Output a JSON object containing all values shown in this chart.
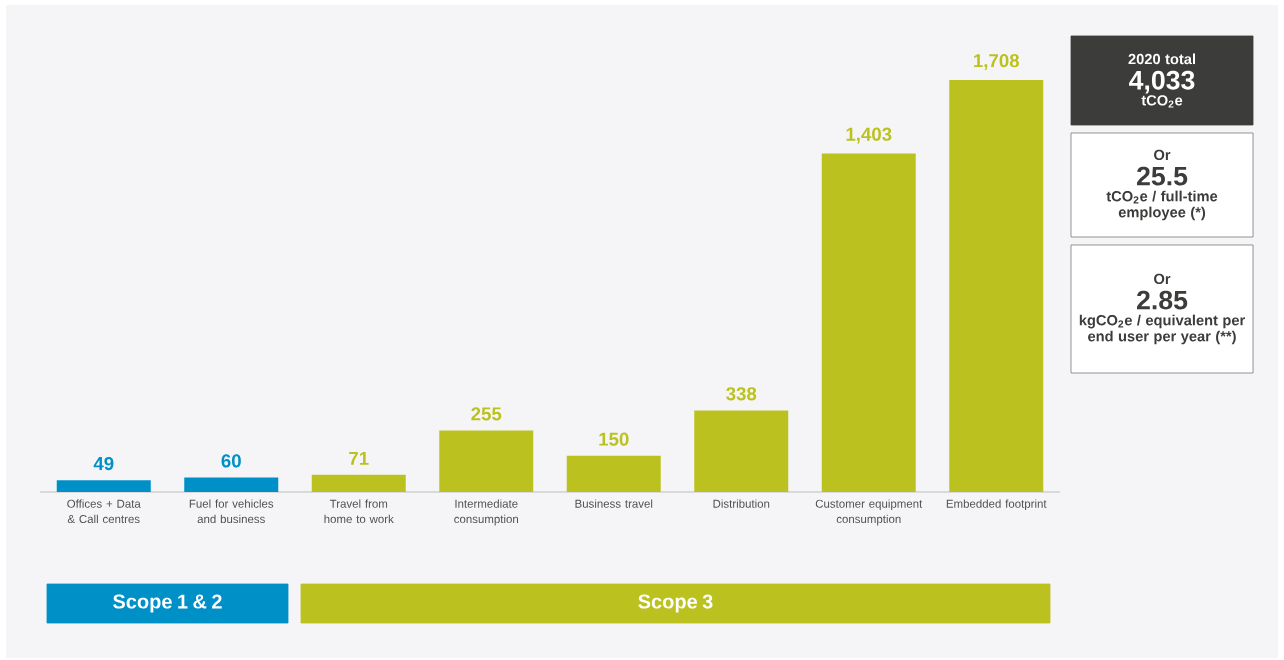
{
  "chart_data": {
    "type": "bar",
    "categories": [
      "Offices + Data & Call centres",
      "Fuel for vehicles and business",
      "Travel from home to work",
      "Intermediate consumption",
      "Business travel",
      "Distribution",
      "Customer equipment consumption",
      "Embedded footprint"
    ],
    "values": [
      49,
      60,
      71,
      255,
      150,
      338,
      1403,
      1708
    ],
    "colors": [
      "#0090c8",
      "#0090c8",
      "#bbc21f",
      "#bbc21f",
      "#bbc21f",
      "#bbc21f",
      "#bbc21f",
      "#bbc21f"
    ],
    "value_labels": [
      "49",
      "60",
      "71",
      "255",
      "150",
      "338",
      "1,403",
      "1,708"
    ],
    "annotations": [
      "2020 total",
      "4,033",
      "tCO$_{2}$e",
      "Or",
      "25.5",
      "tCO$_{2}$e / full-time employee (*)",
      "Or",
      "2.85",
      "kgCO$_{2}$e / equivalent per end user per year (**)",
      "Scope 1 & 2",
      "Scope 3"
    ]
  }
}
